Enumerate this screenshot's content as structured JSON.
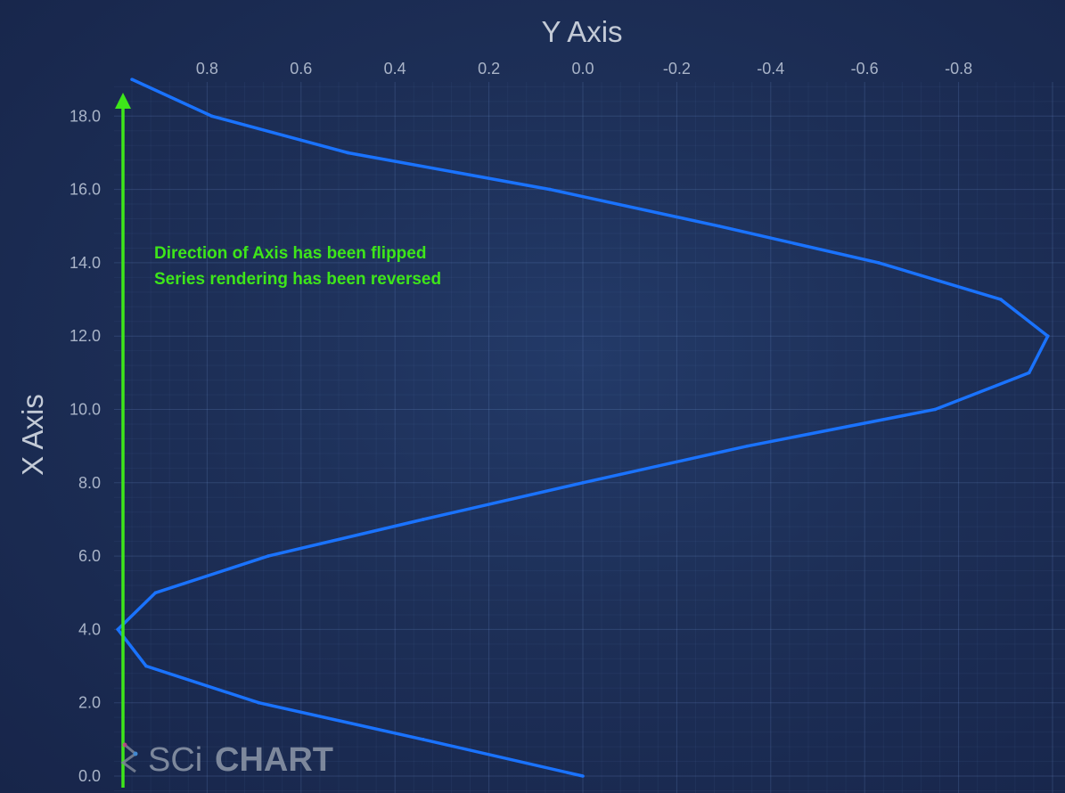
{
  "chart_data": {
    "type": "line",
    "title": "",
    "xlabel": "X Axis",
    "ylabel": "Y Axis",
    "x_axis_position": "left",
    "x_axis_flipped": true,
    "y_axis_position": "top",
    "y_axis_flipped": true,
    "xlim": [
      -0.3,
      19
    ],
    "ylim": [
      1.0,
      -1.0
    ],
    "x_ticks": [
      "0.0",
      "2.0",
      "4.0",
      "6.0",
      "8.0",
      "10.0",
      "12.0",
      "14.0",
      "16.0",
      "18.0"
    ],
    "y_ticks": [
      "0.8",
      "0.6",
      "0.4",
      "0.2",
      "0.0",
      "-0.2",
      "-0.4",
      "-0.6",
      "-0.8"
    ],
    "grid": true,
    "series": [
      {
        "x": [
          0,
          1,
          2,
          3,
          4,
          5,
          6,
          7,
          8,
          9,
          10,
          11,
          12,
          13,
          14,
          15,
          16,
          17,
          18,
          19
        ],
        "y": [
          0.0,
          0.34,
          0.69,
          0.93,
          0.99,
          0.91,
          0.67,
          0.34,
          0.0,
          -0.35,
          -0.75,
          -0.95,
          -0.99,
          -0.89,
          -0.63,
          -0.29,
          0.07,
          0.5,
          0.79,
          0.96
        ]
      }
    ],
    "series_color": "#1a73ff",
    "annotations": [
      "Direction of Axis has been flipped",
      "Series rendering has been reversed"
    ],
    "annotation_color": "#3ee61a"
  },
  "watermark": {
    "text_light": "SCi",
    "text_bold": "CHART"
  }
}
